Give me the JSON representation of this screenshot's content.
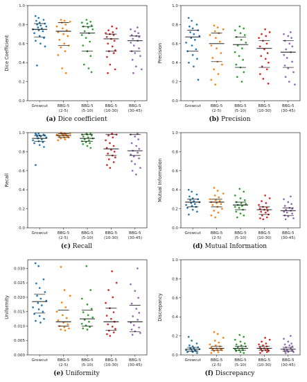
{
  "figure": {
    "colors": [
      "#1f77b4",
      "#ff7f0e",
      "#2ca02c",
      "#d62728",
      "#9467bd"
    ],
    "categories": [
      "Growcut",
      "BBG-5\n(2-5)",
      "BBG-5\n(5-10)",
      "BBG-5\n(10-30)",
      "BBG-5\n(30-45)"
    ]
  },
  "chart_data": [
    {
      "id": "a",
      "type": "scatter",
      "caption_letter": "(a)",
      "caption_text": "Dice coefficient",
      "ylabel": "Dice Coefficient",
      "ylim": [
        0,
        1.0
      ],
      "yticks": [
        "0.0",
        "0.2",
        "0.4",
        "0.6",
        "0.8",
        "1.0"
      ],
      "ytick_values": [
        0,
        0.2,
        0.4,
        0.6,
        0.8,
        1.0
      ],
      "series": [
        {
          "category": "Growcut",
          "mean": 0.75,
          "q1": 0.67,
          "q3": 0.81,
          "values": [
            0.89,
            0.87,
            0.85,
            0.84,
            0.82,
            0.81,
            0.8,
            0.79,
            0.78,
            0.77,
            0.76,
            0.75,
            0.74,
            0.73,
            0.71,
            0.68,
            0.66,
            0.63,
            0.6,
            0.57,
            0.37
          ]
        },
        {
          "category": "BBG-5 (2-5)",
          "mean": 0.73,
          "q1": 0.58,
          "q3": 0.82,
          "values": [
            0.85,
            0.84,
            0.83,
            0.82,
            0.8,
            0.78,
            0.76,
            0.74,
            0.72,
            0.7,
            0.68,
            0.64,
            0.6,
            0.58,
            0.56,
            0.52,
            0.48,
            0.34,
            0.29
          ]
        },
        {
          "category": "BBG-5 (5-10)",
          "mean": 0.71,
          "q1": 0.52,
          "q3": 0.78,
          "values": [
            0.85,
            0.83,
            0.82,
            0.81,
            0.79,
            0.78,
            0.77,
            0.75,
            0.73,
            0.71,
            0.69,
            0.66,
            0.62,
            0.58,
            0.52,
            0.47,
            0.38,
            0.34,
            0.3
          ]
        },
        {
          "category": "BBG-5 (10-30)",
          "mean": 0.65,
          "q1": 0.52,
          "q3": 0.7,
          "values": [
            0.78,
            0.76,
            0.74,
            0.72,
            0.71,
            0.7,
            0.69,
            0.67,
            0.65,
            0.63,
            0.6,
            0.57,
            0.53,
            0.52,
            0.5,
            0.46,
            0.38,
            0.33,
            0.29
          ]
        },
        {
          "category": "BBG-5 (30-45)",
          "mean": 0.63,
          "q1": 0.52,
          "q3": 0.68,
          "values": [
            0.77,
            0.75,
            0.73,
            0.71,
            0.69,
            0.68,
            0.67,
            0.65,
            0.63,
            0.61,
            0.58,
            0.55,
            0.52,
            0.5,
            0.47,
            0.43,
            0.36,
            0.33,
            0.29
          ]
        }
      ]
    },
    {
      "id": "b",
      "type": "scatter",
      "caption_letter": "(b)",
      "caption_text": "Precision",
      "ylabel": "Precision",
      "ylim": [
        0,
        1.0
      ],
      "yticks": [
        "0.0",
        "0.2",
        "0.4",
        "0.6",
        "0.8",
        "1.0"
      ],
      "ytick_values": [
        0,
        0.2,
        0.4,
        0.6,
        0.8,
        1.0
      ],
      "series": [
        {
          "category": "Growcut",
          "mean": 0.67,
          "q1": 0.52,
          "q3": 0.74,
          "values": [
            0.87,
            0.84,
            0.8,
            0.78,
            0.76,
            0.74,
            0.72,
            0.7,
            0.68,
            0.66,
            0.64,
            0.61,
            0.58,
            0.54,
            0.52,
            0.48,
            0.44,
            0.4,
            0.36,
            0.22
          ]
        },
        {
          "category": "BBG-5 (2-5)",
          "mean": 0.6,
          "q1": 0.41,
          "q3": 0.71,
          "values": [
            0.79,
            0.77,
            0.75,
            0.73,
            0.71,
            0.69,
            0.66,
            0.62,
            0.58,
            0.55,
            0.5,
            0.45,
            0.41,
            0.38,
            0.33,
            0.28,
            0.22,
            0.17
          ]
        },
        {
          "category": "BBG-5 (5-10)",
          "mean": 0.59,
          "q1": 0.35,
          "q3": 0.67,
          "values": [
            0.78,
            0.76,
            0.74,
            0.71,
            0.69,
            0.67,
            0.64,
            0.61,
            0.58,
            0.55,
            0.51,
            0.47,
            0.43,
            0.38,
            0.35,
            0.3,
            0.25,
            0.2
          ]
        },
        {
          "category": "BBG-5 (10-30)",
          "mean": 0.55,
          "q1": 0.35,
          "q3": 0.63,
          "values": [
            0.75,
            0.72,
            0.7,
            0.68,
            0.66,
            0.63,
            0.6,
            0.57,
            0.54,
            0.5,
            0.47,
            0.44,
            0.4,
            0.36,
            0.33,
            0.28,
            0.23,
            0.18
          ]
        },
        {
          "category": "BBG-5 (30-45)",
          "mean": 0.51,
          "q1": 0.35,
          "q3": 0.63,
          "values": [
            0.72,
            0.7,
            0.68,
            0.66,
            0.63,
            0.6,
            0.57,
            0.54,
            0.51,
            0.48,
            0.45,
            0.41,
            0.37,
            0.34,
            0.3,
            0.25,
            0.2,
            0.17
          ]
        }
      ]
    },
    {
      "id": "c",
      "type": "scatter",
      "caption_letter": "(c)",
      "caption_text": "Recall",
      "ylabel": "Recall",
      "ylim": [
        0,
        1.0
      ],
      "yticks": [
        "0.0",
        "0.2",
        "0.4",
        "0.6",
        "0.8",
        "1.0"
      ],
      "ytick_values": [
        0,
        0.2,
        0.4,
        0.6,
        0.8,
        1.0
      ],
      "series": [
        {
          "category": "Growcut",
          "mean": 0.94,
          "q1": 0.91,
          "q3": 0.97,
          "values": [
            0.99,
            0.99,
            0.98,
            0.98,
            0.97,
            0.97,
            0.96,
            0.96,
            0.95,
            0.94,
            0.93,
            0.92,
            0.91,
            0.9,
            0.89,
            0.87,
            0.85,
            0.66
          ]
        },
        {
          "category": "BBG-5 (2-5)",
          "mean": 0.97,
          "q1": 0.95,
          "q3": 0.99,
          "values": [
            1.0,
            0.99,
            0.99,
            0.99,
            0.98,
            0.98,
            0.98,
            0.97,
            0.97,
            0.97,
            0.96,
            0.96,
            0.95,
            0.95,
            0.94,
            0.93,
            0.92
          ]
        },
        {
          "category": "BBG-5 (5-10)",
          "mean": 0.94,
          "q1": 0.91,
          "q3": 0.98,
          "values": [
            0.99,
            0.99,
            0.98,
            0.98,
            0.97,
            0.96,
            0.95,
            0.94,
            0.93,
            0.92,
            0.91,
            0.9,
            0.89,
            0.88,
            0.86,
            0.84
          ]
        },
        {
          "category": "BBG-5 (10-30)",
          "mean": 0.83,
          "q1": 0.76,
          "q3": 0.98,
          "values": [
            0.99,
            0.98,
            0.97,
            0.95,
            0.92,
            0.89,
            0.86,
            0.84,
            0.82,
            0.8,
            0.78,
            0.76,
            0.74,
            0.72,
            0.69,
            0.66,
            0.63
          ]
        },
        {
          "category": "BBG-5 (30-45)",
          "mean": 0.81,
          "q1": 0.76,
          "q3": 0.98,
          "values": [
            0.99,
            0.98,
            0.96,
            0.93,
            0.89,
            0.86,
            0.83,
            0.81,
            0.79,
            0.77,
            0.75,
            0.73,
            0.7,
            0.67,
            0.63,
            0.6,
            0.56
          ]
        }
      ]
    },
    {
      "id": "d",
      "type": "scatter",
      "caption_letter": "(d)",
      "caption_text": "Mutual Information",
      "ylabel": "Mutual Information",
      "ylim": [
        0,
        1.0
      ],
      "yticks": [
        "0.0",
        "0.2",
        "0.4",
        "0.6",
        "0.8",
        "1.0"
      ],
      "ytick_values": [
        0,
        0.2,
        0.4,
        0.6,
        0.8,
        1.0
      ],
      "series": [
        {
          "category": "Growcut",
          "mean": 0.27,
          "q1": 0.22,
          "q3": 0.3,
          "values": [
            0.4,
            0.38,
            0.35,
            0.33,
            0.31,
            0.3,
            0.29,
            0.28,
            0.27,
            0.26,
            0.25,
            0.24,
            0.23,
            0.22,
            0.21,
            0.19,
            0.17,
            0.14
          ]
        },
        {
          "category": "BBG-5 (2-5)",
          "mean": 0.27,
          "q1": 0.22,
          "q3": 0.3,
          "values": [
            0.42,
            0.39,
            0.36,
            0.34,
            0.32,
            0.3,
            0.29,
            0.28,
            0.27,
            0.26,
            0.25,
            0.24,
            0.22,
            0.2,
            0.18,
            0.16,
            0.13,
            0.11
          ]
        },
        {
          "category": "BBG-5 (5-10)",
          "mean": 0.24,
          "q1": 0.19,
          "q3": 0.27,
          "values": [
            0.41,
            0.38,
            0.34,
            0.31,
            0.29,
            0.27,
            0.26,
            0.25,
            0.24,
            0.23,
            0.22,
            0.21,
            0.19,
            0.17,
            0.15,
            0.13,
            0.11
          ]
        },
        {
          "category": "BBG-5 (10-30)",
          "mean": 0.19,
          "q1": 0.14,
          "q3": 0.22,
          "values": [
            0.34,
            0.31,
            0.28,
            0.26,
            0.24,
            0.22,
            0.21,
            0.2,
            0.19,
            0.18,
            0.17,
            0.16,
            0.14,
            0.13,
            0.11,
            0.1,
            0.09
          ]
        },
        {
          "category": "BBG-5 (30-45)",
          "mean": 0.18,
          "q1": 0.13,
          "q3": 0.21,
          "values": [
            0.33,
            0.3,
            0.27,
            0.25,
            0.23,
            0.21,
            0.2,
            0.19,
            0.18,
            0.17,
            0.16,
            0.15,
            0.13,
            0.12,
            0.1,
            0.09
          ]
        }
      ]
    },
    {
      "id": "e",
      "type": "scatter",
      "caption_letter": "(e)",
      "caption_text": "Uniformity",
      "ylabel": "Uniformity",
      "ylim": [
        0,
        0.033
      ],
      "yticks": [
        "0.000",
        "0.005",
        "0.010",
        "0.015",
        "0.020",
        "0.025",
        "0.030"
      ],
      "ytick_values": [
        0,
        0.005,
        0.01,
        0.015,
        0.02,
        0.025,
        0.03
      ],
      "series": [
        {
          "category": "Growcut",
          "mean": 0.0185,
          "q1": 0.0145,
          "q3": 0.021,
          "values": [
            0.0318,
            0.0308,
            0.0262,
            0.0248,
            0.0232,
            0.0218,
            0.0205,
            0.0195,
            0.0188,
            0.018,
            0.0172,
            0.0165,
            0.0158,
            0.015,
            0.0142,
            0.0135,
            0.0125,
            0.0118,
            0.0112
          ]
        },
        {
          "category": "BBG-5 (2-5)",
          "mean": 0.0115,
          "q1": 0.01,
          "q3": 0.0155,
          "values": [
            0.0305,
            0.0225,
            0.0205,
            0.0182,
            0.0165,
            0.015,
            0.0138,
            0.0128,
            0.012,
            0.0112,
            0.0106,
            0.01,
            0.0096,
            0.0092,
            0.0088,
            0.0085
          ]
        },
        {
          "category": "BBG-5 (5-10)",
          "mean": 0.0125,
          "q1": 0.01,
          "q3": 0.0155,
          "values": [
            0.0308,
            0.0225,
            0.0195,
            0.0175,
            0.016,
            0.0148,
            0.0138,
            0.013,
            0.0122,
            0.0115,
            0.0108,
            0.0102,
            0.0097,
            0.0092,
            0.0088
          ]
        },
        {
          "category": "BBG-5 (10-30)",
          "mean": 0.0115,
          "q1": 0.0085,
          "q3": 0.0162,
          "values": [
            0.029,
            0.025,
            0.0225,
            0.02,
            0.018,
            0.0162,
            0.0148,
            0.0136,
            0.0125,
            0.0115,
            0.0106,
            0.0098,
            0.009,
            0.0084,
            0.0078,
            0.0072,
            0.0066
          ]
        },
        {
          "category": "BBG-5 (30-45)",
          "mean": 0.0115,
          "q1": 0.008,
          "q3": 0.0172,
          "values": [
            0.03,
            0.0245,
            0.0222,
            0.0198,
            0.0178,
            0.016,
            0.0146,
            0.0134,
            0.0122,
            0.0112,
            0.0103,
            0.0095,
            0.0088,
            0.0082,
            0.0076,
            0.007
          ]
        }
      ]
    },
    {
      "id": "f",
      "type": "scatter",
      "caption_letter": "(f)",
      "caption_text": "Discrepancy",
      "ylabel": "Discrepancy",
      "ylim": [
        0,
        1.0
      ],
      "yticks": [
        "0.0",
        "0.2",
        "0.4",
        "0.6",
        "0.8",
        "1.0"
      ],
      "ytick_values": [
        0,
        0.2,
        0.4,
        0.6,
        0.8,
        1.0
      ],
      "series": [
        {
          "category": "Growcut",
          "mean": 0.06,
          "q1": 0.04,
          "q3": 0.08,
          "values": [
            0.19,
            0.15,
            0.12,
            0.1,
            0.09,
            0.08,
            0.07,
            0.07,
            0.06,
            0.06,
            0.05,
            0.05,
            0.04,
            0.04,
            0.03,
            0.03,
            0.02
          ]
        },
        {
          "category": "BBG-5 (2-5)",
          "mean": 0.07,
          "q1": 0.05,
          "q3": 0.09,
          "values": [
            0.24,
            0.22,
            0.18,
            0.15,
            0.13,
            0.11,
            0.1,
            0.09,
            0.08,
            0.07,
            0.06,
            0.06,
            0.05,
            0.05,
            0.04,
            0.03,
            0.02
          ]
        },
        {
          "category": "BBG-5 (5-10)",
          "mean": 0.07,
          "q1": 0.05,
          "q3": 0.09,
          "values": [
            0.21,
            0.19,
            0.16,
            0.14,
            0.12,
            0.11,
            0.1,
            0.09,
            0.08,
            0.07,
            0.06,
            0.05,
            0.05,
            0.04,
            0.03,
            0.02
          ]
        },
        {
          "category": "BBG-5 (10-30)",
          "mean": 0.07,
          "q1": 0.05,
          "q3": 0.09,
          "values": [
            0.18,
            0.16,
            0.14,
            0.12,
            0.11,
            0.1,
            0.09,
            0.08,
            0.07,
            0.06,
            0.06,
            0.05,
            0.04,
            0.04,
            0.03,
            0.02
          ]
        },
        {
          "category": "BBG-5 (30-45)",
          "mean": 0.06,
          "q1": 0.04,
          "q3": 0.08,
          "values": [
            0.2,
            0.17,
            0.14,
            0.12,
            0.11,
            0.1,
            0.09,
            0.08,
            0.07,
            0.06,
            0.05,
            0.05,
            0.04,
            0.03,
            0.03,
            0.02
          ]
        }
      ]
    }
  ]
}
